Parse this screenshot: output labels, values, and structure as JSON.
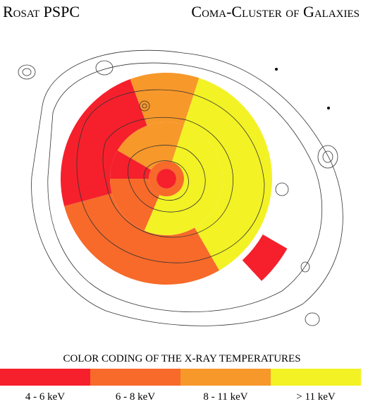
{
  "header": {
    "left": "Rosat  PSPC",
    "right": "Coma-Cluster of Galaxies"
  },
  "legend": {
    "title": "COLOR CODING OF THE X-RAY TEMPERATURES",
    "items": [
      {
        "label": "4 - 6 keV",
        "color": "#f5202c"
      },
      {
        "label": "6 - 8 keV",
        "color": "#f76a2a"
      },
      {
        "label": "8 - 11 keV",
        "color": "#f7982a"
      },
      {
        "label": "> 11 keV",
        "color": "#f3f224"
      }
    ]
  }
}
